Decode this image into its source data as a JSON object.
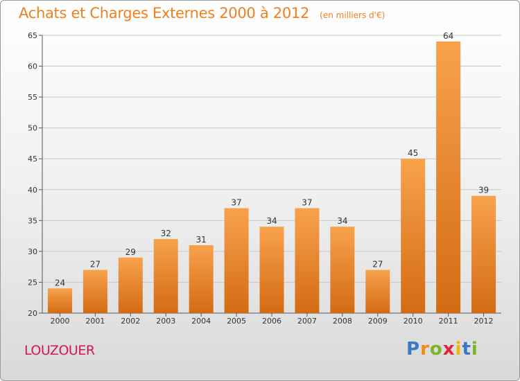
{
  "chart_data": {
    "type": "bar",
    "title": "Achats et Charges Externes 2000 à 2012",
    "subtitle": "(en milliers d'€)",
    "categories": [
      "2000",
      "2001",
      "2002",
      "2003",
      "2004",
      "2005",
      "2006",
      "2007",
      "2008",
      "2009",
      "2010",
      "2011",
      "2012"
    ],
    "values": [
      24,
      27,
      29,
      32,
      31,
      37,
      34,
      37,
      34,
      27,
      45,
      64,
      39
    ],
    "ylim": [
      20,
      65
    ],
    "yticks": [
      20,
      25,
      30,
      35,
      40,
      45,
      50,
      55,
      60,
      65
    ],
    "grid": true,
    "bar_color": "#f0932e"
  },
  "place_name": "LOUZOUER",
  "logo": {
    "letters": [
      "P",
      "r",
      "o",
      "x",
      "i",
      "t",
      "i"
    ],
    "colors": [
      "#3b79c3",
      "#f08a1d",
      "#79b528",
      "#e0253b",
      "#f6b400",
      "#3b79c3",
      "#79b528"
    ]
  },
  "colors": {
    "title": "#f07f1e",
    "place": "#d4145a"
  }
}
